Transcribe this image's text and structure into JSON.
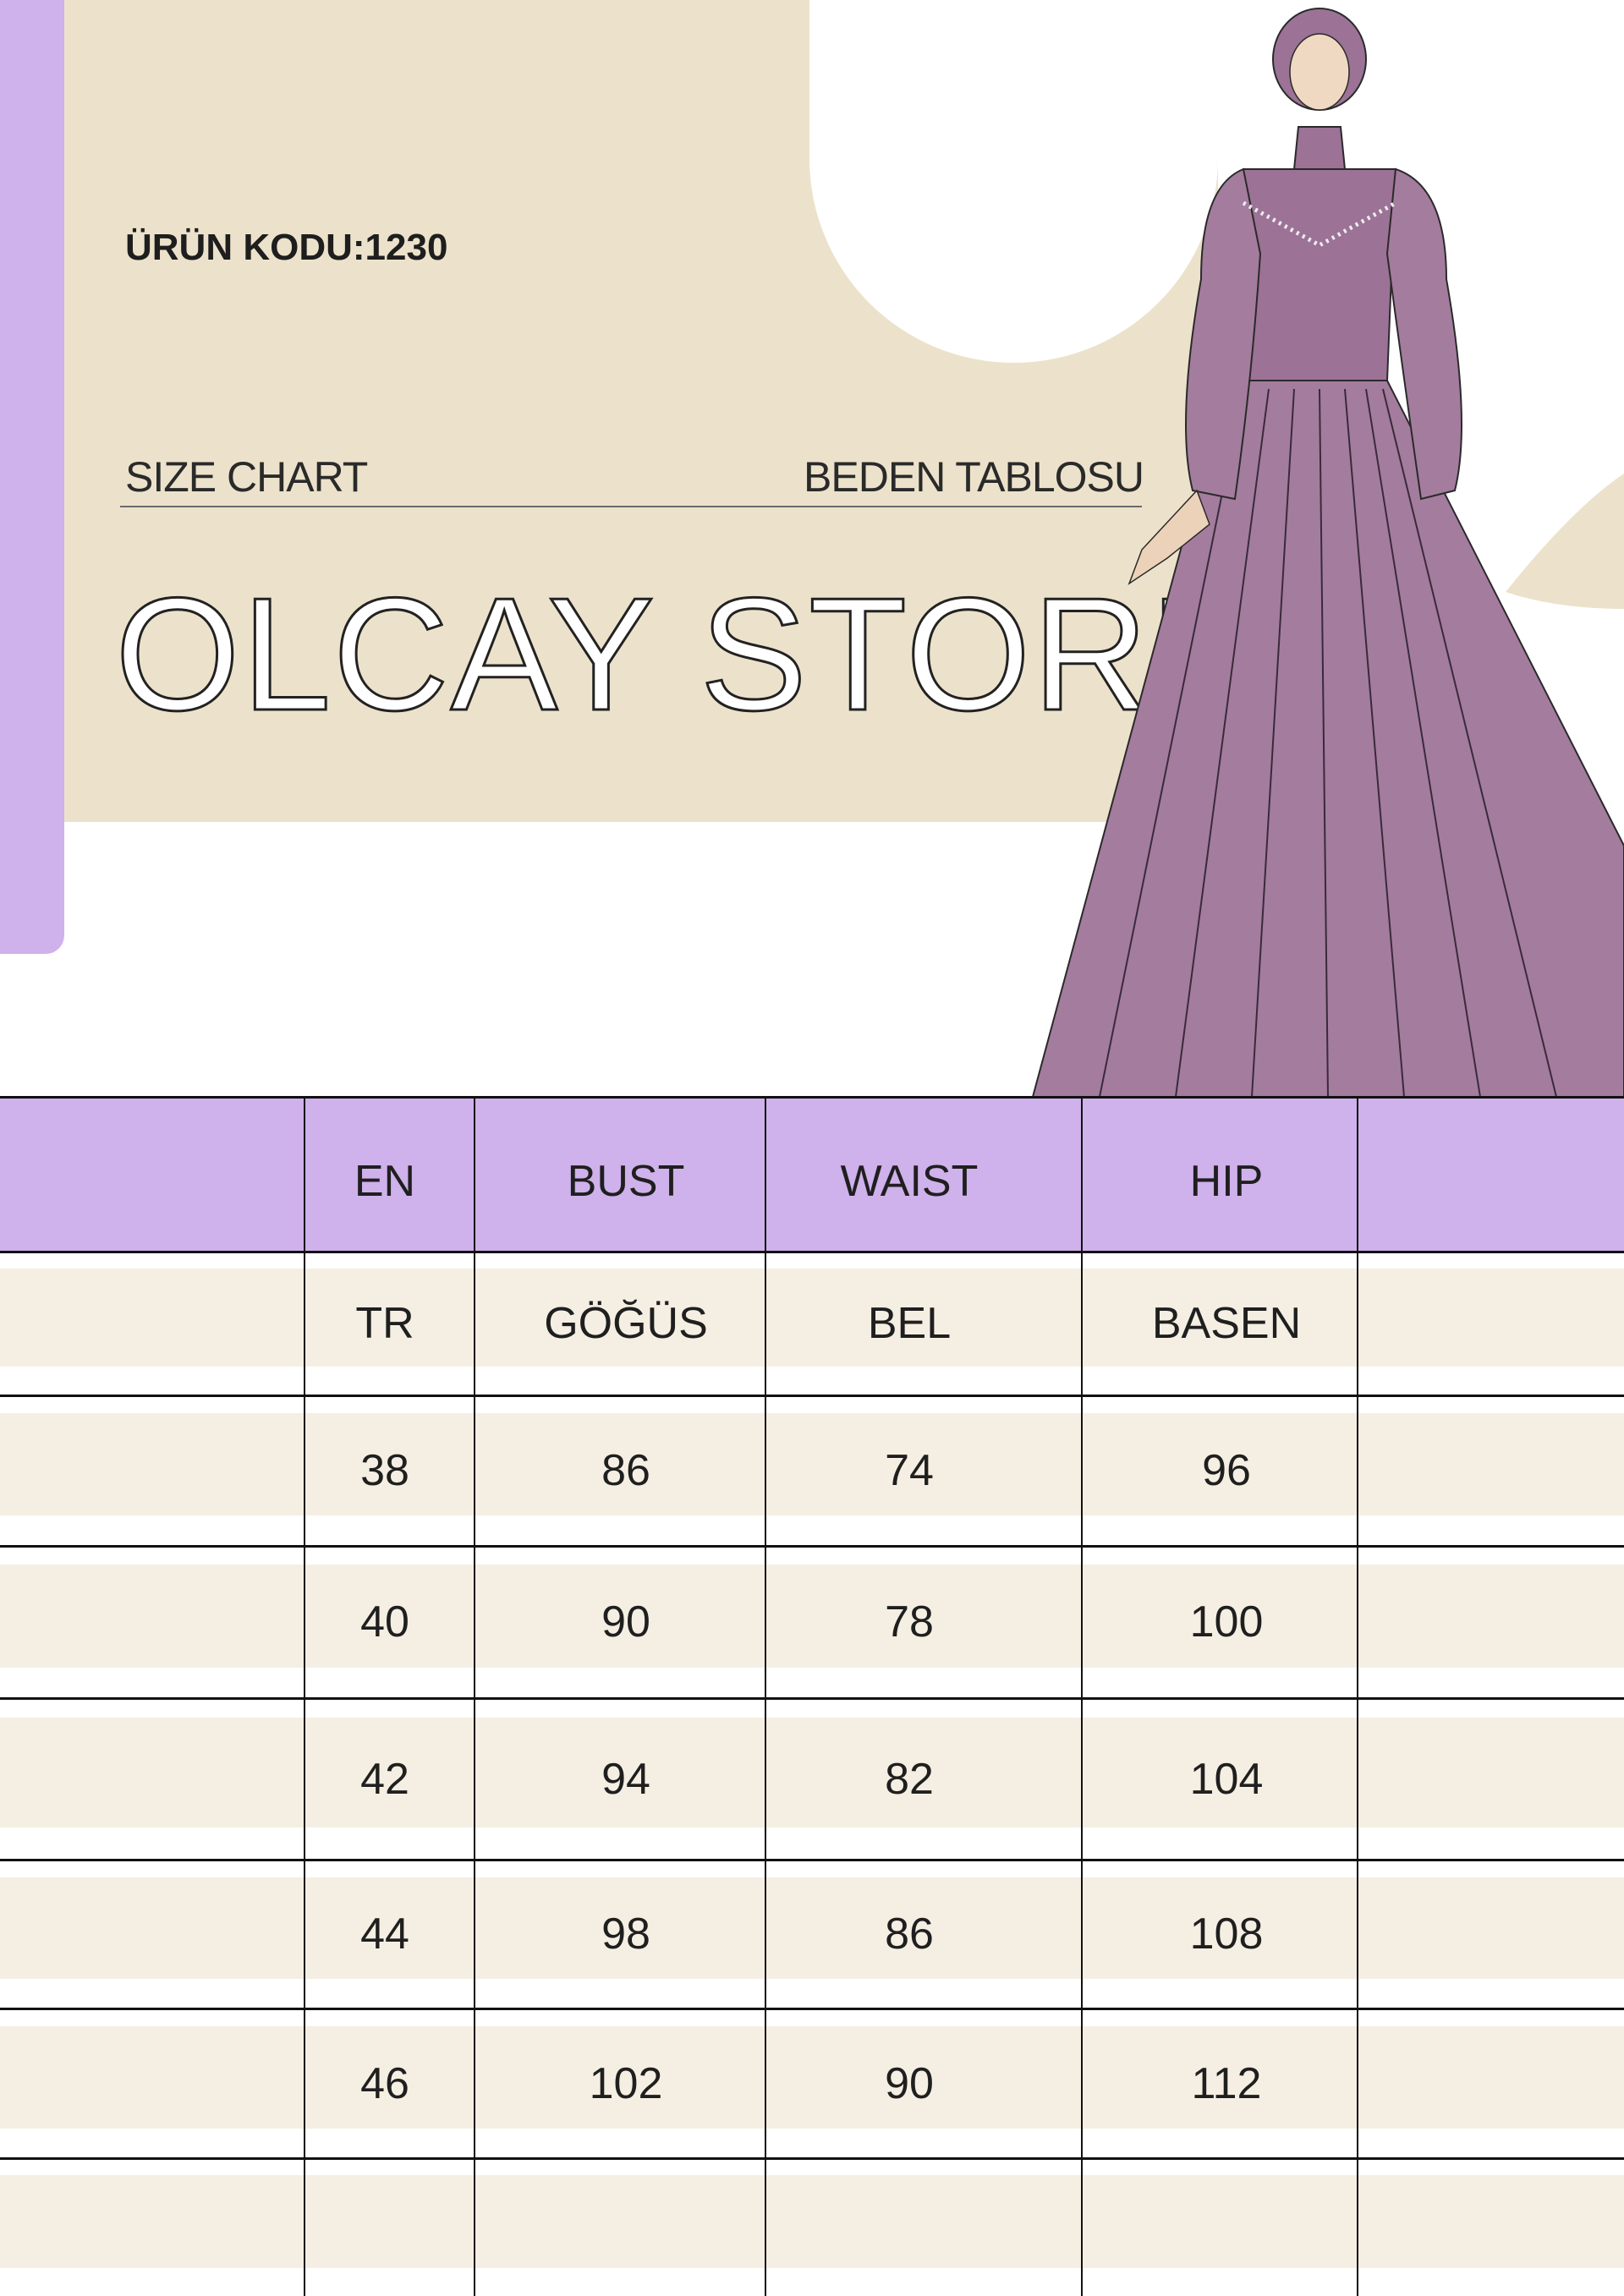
{
  "product_code": "ÜRÜN KODU:1230",
  "size_chart_label": "SIZE CHART",
  "beden_tablosu_label": "BEDEN TABLOSU",
  "brand": "OLCAY STORE",
  "colors": {
    "accent_purple": "#cfb1eb",
    "panel_beige": "#ece2cb",
    "row_beige": "#f5efe3",
    "dress": "#a47c9e"
  },
  "illustration": "dress-illustration",
  "table": {
    "header": [
      "",
      "EN",
      "BUST",
      "WAIST",
      "HIP",
      ""
    ],
    "rows": [
      [
        "",
        "TR",
        "GÖĞÜS",
        "BEL",
        "BASEN",
        ""
      ],
      [
        "",
        "38",
        "86",
        "74",
        "96",
        ""
      ],
      [
        "",
        "40",
        "90",
        "78",
        "100",
        ""
      ],
      [
        "",
        "42",
        "94",
        "82",
        "104",
        ""
      ],
      [
        "",
        "44",
        "98",
        "86",
        "108",
        ""
      ],
      [
        "",
        "46",
        "102",
        "90",
        "112",
        ""
      ],
      [
        "",
        "",
        "",
        "",
        "",
        ""
      ]
    ]
  }
}
